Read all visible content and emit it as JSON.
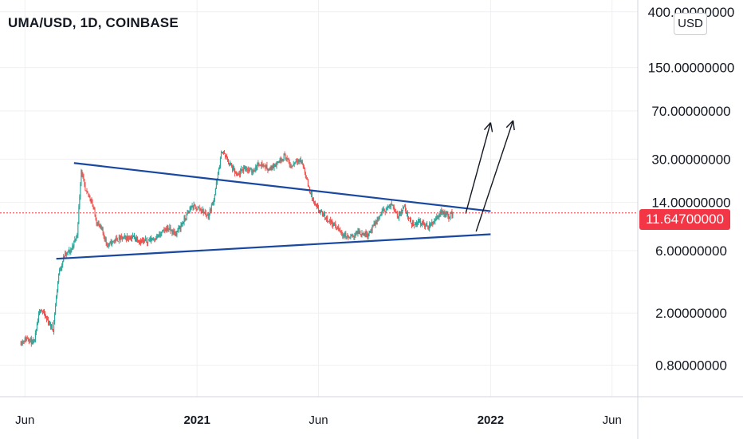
{
  "header": {
    "title": "UMA/USD, 1D, COINBASE",
    "currency_button": "USD"
  },
  "last_price_label": "11.64700000",
  "colors": {
    "up": "#26a69a",
    "down": "#ef5350",
    "trendline": "#1848a0",
    "arrow": "#131722",
    "price_line": "#f23645",
    "grid": "#eef0f3",
    "axis": "#d1d4dc"
  },
  "chart_data": {
    "type": "candlestick",
    "title": "UMA/USD, 1D, COINBASE",
    "scale": "log",
    "y_tick_labels": [
      "400.00000000",
      "150.00000000",
      "70.00000000",
      "30.00000000",
      "14.00000000",
      "6.00000000",
      "2.00000000",
      "0.80000000"
    ],
    "y_ticks": [
      400,
      150,
      70,
      30,
      14,
      6,
      2,
      0.8
    ],
    "x_tick_labels": [
      "Jun",
      "2021",
      "Jun",
      "2022",
      "Jun"
    ],
    "x_tick_dates": [
      "2020-06-01",
      "2021-01-01",
      "2021-06-01",
      "2022-01-01",
      "2022-06-01"
    ],
    "ylim": [
      0.6,
      440
    ],
    "xlim": [
      "2020-05-01",
      "2022-07-03"
    ],
    "last_price": 11.647,
    "price_path": [
      [
        "2020-05-27",
        1.2
      ],
      [
        "2020-06-05",
        1.3
      ],
      [
        "2020-06-12",
        1.15
      ],
      [
        "2020-06-20",
        2.2
      ],
      [
        "2020-06-28",
        1.8
      ],
      [
        "2020-07-06",
        1.5
      ],
      [
        "2020-07-13",
        4.0
      ],
      [
        "2020-07-20",
        5.5
      ],
      [
        "2020-07-28",
        6.0
      ],
      [
        "2020-08-05",
        8.0
      ],
      [
        "2020-08-10",
        25.0
      ],
      [
        "2020-08-15",
        17.0
      ],
      [
        "2020-08-22",
        15.0
      ],
      [
        "2020-08-29",
        10.0
      ],
      [
        "2020-09-05",
        8.5
      ],
      [
        "2020-09-12",
        6.5
      ],
      [
        "2020-09-20",
        7.2
      ],
      [
        "2020-10-01",
        7.5
      ],
      [
        "2020-10-15",
        7.6
      ],
      [
        "2020-10-25",
        7.0
      ],
      [
        "2020-11-05",
        7.3
      ],
      [
        "2020-11-15",
        7.8
      ],
      [
        "2020-11-25",
        9.0
      ],
      [
        "2020-12-05",
        8.0
      ],
      [
        "2020-12-15",
        10.0
      ],
      [
        "2020-12-25",
        13.0
      ],
      [
        "2021-01-05",
        12.5
      ],
      [
        "2021-01-15",
        11.0
      ],
      [
        "2021-01-22",
        15.0
      ],
      [
        "2021-02-01",
        35.0
      ],
      [
        "2021-02-10",
        28.0
      ],
      [
        "2021-02-20",
        22.0
      ],
      [
        "2021-03-01",
        26.0
      ],
      [
        "2021-03-10",
        24.0
      ],
      [
        "2021-03-20",
        28.0
      ],
      [
        "2021-04-01",
        25.0
      ],
      [
        "2021-04-10",
        28.0
      ],
      [
        "2021-04-20",
        32.0
      ],
      [
        "2021-04-28",
        26.0
      ],
      [
        "2021-05-05",
        30.0
      ],
      [
        "2021-05-12",
        28.0
      ],
      [
        "2021-05-20",
        18.0
      ],
      [
        "2021-05-28",
        13.0
      ],
      [
        "2021-06-08",
        11.0
      ],
      [
        "2021-06-20",
        9.5
      ],
      [
        "2021-07-01",
        8.0
      ],
      [
        "2021-07-10",
        7.5
      ],
      [
        "2021-07-20",
        8.3
      ],
      [
        "2021-08-01",
        8.0
      ],
      [
        "2021-08-10",
        9.5
      ],
      [
        "2021-08-20",
        12.0
      ],
      [
        "2021-09-01",
        13.5
      ],
      [
        "2021-09-08",
        11.0
      ],
      [
        "2021-09-15",
        13.0
      ],
      [
        "2021-09-25",
        9.5
      ],
      [
        "2021-10-05",
        10.0
      ],
      [
        "2021-10-15",
        9.0
      ],
      [
        "2021-10-22",
        10.0
      ],
      [
        "2021-11-01",
        12.0
      ],
      [
        "2021-11-10",
        11.0
      ],
      [
        "2021-11-15",
        11.6
      ]
    ],
    "trendlines": [
      {
        "name": "upper",
        "from": [
          "2020-08-01",
          28.0
        ],
        "to": [
          "2022-01-01",
          12.0
        ]
      },
      {
        "name": "lower",
        "from": [
          "2020-07-10",
          5.2
        ],
        "to": [
          "2022-01-01",
          8.0
        ]
      }
    ],
    "arrows": [
      {
        "from": [
          "2021-12-01",
          11.5
        ],
        "to": [
          "2022-01-01",
          57.0
        ]
      },
      {
        "from": [
          "2021-12-14",
          8.4
        ],
        "to": [
          "2022-01-29",
          59.0
        ]
      }
    ],
    "grid": true,
    "legend": "none"
  }
}
